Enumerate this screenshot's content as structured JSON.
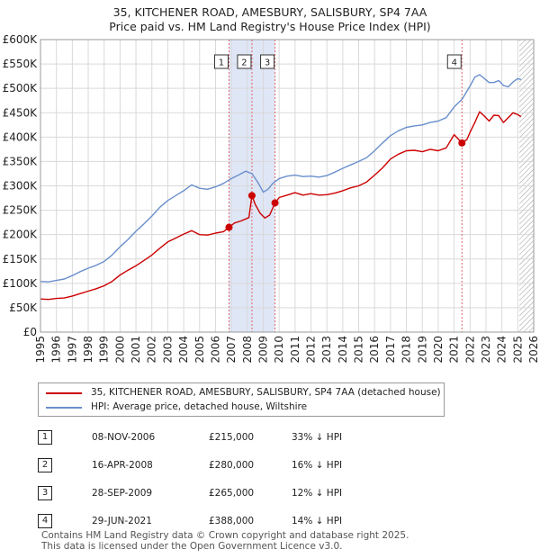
{
  "title_line1": "35, KITCHENER ROAD, AMESBURY, SALISBURY, SP4 7AA",
  "title_line2": "Price paid vs. HM Land Registry's House Price Index (HPI)",
  "colors": {
    "property": "#cc0000",
    "hpi": "#6a8fcc",
    "shade": "#dfe6f6",
    "grid": "#d9d9d9",
    "marker_line": "#e06666"
  },
  "chart_data": {
    "type": "line",
    "title": "Price paid vs. HM Land Registry's House Price Index (HPI)",
    "xlim": [
      1995,
      2026
    ],
    "ylim": [
      0,
      600000
    ],
    "x_ticks": [
      1995,
      1996,
      1997,
      1998,
      1999,
      2000,
      2001,
      2002,
      2003,
      2004,
      2005,
      2006,
      2007,
      2008,
      2009,
      2010,
      2011,
      2012,
      2013,
      2014,
      2015,
      2016,
      2017,
      2018,
      2019,
      2020,
      2021,
      2022,
      2023,
      2024,
      2025,
      2026
    ],
    "y_ticks": [
      0,
      50000,
      100000,
      150000,
      200000,
      250000,
      300000,
      350000,
      400000,
      450000,
      500000,
      550000,
      600000
    ],
    "y_tick_labels": [
      "£0",
      "£50K",
      "£100K",
      "£150K",
      "£200K",
      "£250K",
      "£300K",
      "£350K",
      "£400K",
      "£450K",
      "£500K",
      "£550K",
      "£600K"
    ],
    "shaded_ranges": [
      [
        2006.85,
        2009.74
      ]
    ],
    "hatched_from": 2025.1,
    "series": [
      {
        "name": "35, KITCHENER ROAD, AMESBURY, SALISBURY, SP4 7AA (detached house)",
        "color": "#cc0000",
        "x": [
          1995.0,
          1995.5,
          1996.0,
          1996.5,
          1997.0,
          1997.5,
          1998.0,
          1998.5,
          1999.0,
          1999.5,
          2000.0,
          2000.5,
          2001.0,
          2001.5,
          2002.0,
          2002.5,
          2003.0,
          2003.5,
          2004.0,
          2004.5,
          2005.0,
          2005.5,
          2006.0,
          2006.5,
          2006.85,
          2007.2,
          2007.6,
          2007.9,
          2008.1,
          2008.29,
          2008.5,
          2008.8,
          2009.1,
          2009.4,
          2009.74,
          2010.0,
          2010.5,
          2011.0,
          2011.5,
          2012.0,
          2012.5,
          2013.0,
          2013.5,
          2014.0,
          2014.5,
          2015.0,
          2015.5,
          2016.0,
          2016.5,
          2017.0,
          2017.5,
          2018.0,
          2018.5,
          2019.0,
          2019.5,
          2020.0,
          2020.5,
          2021.0,
          2021.49,
          2021.8,
          2022.0,
          2022.3,
          2022.6,
          2022.9,
          2023.2,
          2023.5,
          2023.8,
          2024.1,
          2024.4,
          2024.7,
          2025.0,
          2025.2
        ],
        "values": [
          68000,
          67000,
          69000,
          70000,
          74000,
          79000,
          84000,
          89000,
          95000,
          104000,
          117000,
          127000,
          136000,
          147000,
          158000,
          172000,
          185000,
          193000,
          201000,
          208000,
          200000,
          199000,
          203000,
          206000,
          215000,
          224000,
          228000,
          232000,
          235000,
          280000,
          262000,
          244000,
          234000,
          240000,
          265000,
          276000,
          281000,
          286000,
          281000,
          284000,
          281000,
          282000,
          285000,
          290000,
          296000,
          300000,
          308000,
          322000,
          337000,
          355000,
          365000,
          372000,
          373000,
          370000,
          375000,
          372000,
          378000,
          405000,
          388000,
          395000,
          410000,
          430000,
          452000,
          443000,
          433000,
          445000,
          444000,
          430000,
          440000,
          450000,
          446000,
          442000
        ]
      },
      {
        "name": "HPI: Average price, detached house, Wiltshire",
        "color": "#6a8fcc",
        "x": [
          1995.0,
          1995.5,
          1996.0,
          1996.5,
          1997.0,
          1997.5,
          1998.0,
          1998.5,
          1999.0,
          1999.5,
          2000.0,
          2000.5,
          2001.0,
          2001.5,
          2002.0,
          2002.5,
          2003.0,
          2003.5,
          2004.0,
          2004.5,
          2005.0,
          2005.5,
          2006.0,
          2006.5,
          2007.0,
          2007.5,
          2007.9,
          2008.3,
          2008.7,
          2009.0,
          2009.3,
          2009.6,
          2010.0,
          2010.5,
          2011.0,
          2011.5,
          2012.0,
          2012.5,
          2013.0,
          2013.5,
          2014.0,
          2014.5,
          2015.0,
          2015.5,
          2016.0,
          2016.5,
          2017.0,
          2017.5,
          2018.0,
          2018.5,
          2019.0,
          2019.5,
          2020.0,
          2020.5,
          2021.0,
          2021.5,
          2022.0,
          2022.3,
          2022.6,
          2022.9,
          2023.2,
          2023.5,
          2023.8,
          2024.1,
          2024.4,
          2024.7,
          2025.0,
          2025.2
        ],
        "values": [
          104000,
          103000,
          106000,
          109000,
          116000,
          124000,
          131000,
          137000,
          145000,
          158000,
          175000,
          190000,
          207000,
          222000,
          238000,
          256000,
          270000,
          280000,
          290000,
          302000,
          295000,
          293000,
          298000,
          305000,
          315000,
          323000,
          330000,
          325000,
          305000,
          287000,
          293000,
          305000,
          315000,
          320000,
          322000,
          319000,
          320000,
          318000,
          321000,
          328000,
          336000,
          343000,
          350000,
          358000,
          372000,
          388000,
          403000,
          413000,
          420000,
          423000,
          425000,
          430000,
          433000,
          440000,
          462000,
          478000,
          505000,
          523000,
          528000,
          520000,
          512000,
          512000,
          516000,
          506000,
          503000,
          513000,
          520000,
          518000
        ]
      }
    ],
    "sales": [
      {
        "label": "1",
        "x": 2006.85,
        "value": 215000
      },
      {
        "label": "2",
        "x": 2008.29,
        "value": 280000
      },
      {
        "label": "3",
        "x": 2009.74,
        "value": 265000
      },
      {
        "label": "4",
        "x": 2021.49,
        "value": 388000
      }
    ]
  },
  "legend": {
    "property_label": "35, KITCHENER ROAD, AMESBURY, SALISBURY, SP4 7AA (detached house)",
    "hpi_label": "HPI: Average price, detached house, Wiltshire"
  },
  "table": {
    "rows": [
      {
        "num": "1",
        "date": "08-NOV-2006",
        "price": "£215,000",
        "hpi": "33% ↓ HPI"
      },
      {
        "num": "2",
        "date": "16-APR-2008",
        "price": "£280,000",
        "hpi": "16% ↓ HPI"
      },
      {
        "num": "3",
        "date": "28-SEP-2009",
        "price": "£265,000",
        "hpi": "12% ↓ HPI"
      },
      {
        "num": "4",
        "date": "29-JUN-2021",
        "price": "£388,000",
        "hpi": "14% ↓ HPI"
      }
    ]
  },
  "footer": {
    "line1": "Contains HM Land Registry data © Crown copyright and database right 2025.",
    "line2": "This data is licensed under the Open Government Licence v3.0."
  }
}
